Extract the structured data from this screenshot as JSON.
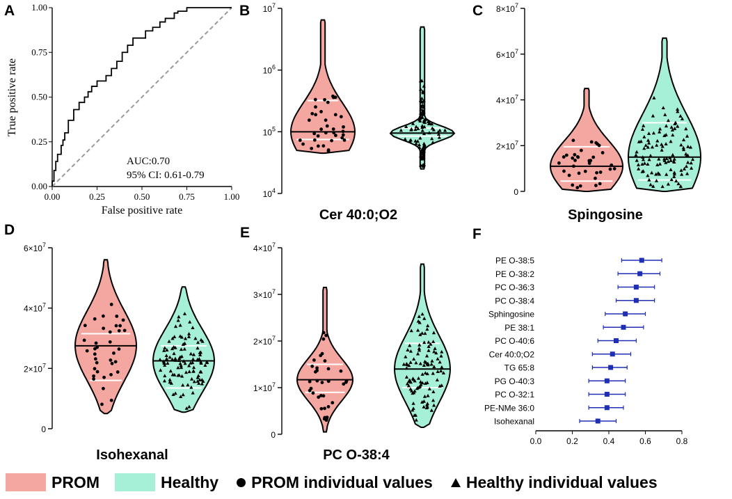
{
  "colors": {
    "prom": "#f4a6a0",
    "healthy": "#a5f0d6",
    "forest": "#1f2fb5"
  },
  "panels": {
    "A": {
      "label": "A"
    },
    "B": {
      "label": "B",
      "title": "Cer 40:0;O2"
    },
    "C": {
      "label": "C",
      "title": "Spingosine"
    },
    "D": {
      "label": "D",
      "title": "Isohexanal"
    },
    "E": {
      "label": "E",
      "title": "PC O-38:4"
    },
    "F": {
      "label": "F"
    }
  },
  "legend": {
    "prom": "PROM",
    "healthy": "Healthy",
    "prom_points": "PROM individual values",
    "healthy_points": "Healthy individual values"
  },
  "chart_data": [
    {
      "id": "A",
      "type": "line",
      "xlabel": "False positive rate",
      "ylabel": "True positive rate",
      "xlim": [
        0,
        1
      ],
      "ylim": [
        0,
        1
      ],
      "xticks": [
        "0.00",
        "0.25",
        "0.50",
        "0.75",
        "1.00"
      ],
      "yticks": [
        "0.00",
        "0.25",
        "0.50",
        "0.75",
        "1.00"
      ],
      "annotation": [
        "AUC:0.70",
        "95% CI: 0.61-0.79"
      ],
      "roc_x": [
        0,
        0,
        0.01,
        0.01,
        0.02,
        0.02,
        0.03,
        0.03,
        0.05,
        0.05,
        0.06,
        0.06,
        0.07,
        0.07,
        0.09,
        0.09,
        0.12,
        0.12,
        0.15,
        0.15,
        0.18,
        0.18,
        0.2,
        0.2,
        0.22,
        0.22,
        0.25,
        0.25,
        0.3,
        0.3,
        0.33,
        0.33,
        0.36,
        0.36,
        0.39,
        0.39,
        0.42,
        0.42,
        0.45,
        0.45,
        0.52,
        0.52,
        0.56,
        0.56,
        0.6,
        0.6,
        0.63,
        0.63,
        0.68,
        0.68,
        0.7,
        0.7,
        0.75,
        0.75,
        1
      ],
      "roc_y": [
        0,
        0.03,
        0.03,
        0.09,
        0.09,
        0.14,
        0.14,
        0.18,
        0.18,
        0.23,
        0.23,
        0.26,
        0.26,
        0.3,
        0.3,
        0.37,
        0.37,
        0.43,
        0.43,
        0.47,
        0.47,
        0.5,
        0.5,
        0.53,
        0.53,
        0.56,
        0.56,
        0.59,
        0.59,
        0.62,
        0.62,
        0.66,
        0.66,
        0.7,
        0.7,
        0.75,
        0.75,
        0.79,
        0.79,
        0.83,
        0.83,
        0.87,
        0.87,
        0.89,
        0.89,
        0.92,
        0.92,
        0.94,
        0.94,
        0.97,
        0.97,
        0.98,
        0.98,
        1,
        1
      ],
      "diagonal": [
        [
          0,
          0
        ],
        [
          1,
          1
        ]
      ]
    },
    {
      "id": "B",
      "type": "violin",
      "scale": "log",
      "ylim": [
        10000,
        10000000
      ],
      "yticks": [
        "10^4",
        "10^5",
        "10^6",
        "10^7"
      ],
      "groups": [
        {
          "name": "PROM",
          "median": 100000,
          "q1": 75000,
          "q3": 320000,
          "min": 45000,
          "max": 6500000
        },
        {
          "name": "Healthy",
          "median": 95000,
          "q1": 85000,
          "q3": 115000,
          "min": 25000,
          "max": 5000000
        }
      ]
    },
    {
      "id": "C",
      "type": "violin",
      "scale": "linear",
      "ylim": [
        0,
        80000000
      ],
      "yticks": [
        "0",
        "2×10^7",
        "4×10^7",
        "6×10^7",
        "8×10^7"
      ],
      "groups": [
        {
          "name": "PROM",
          "median": 11000000,
          "q1": 4500000,
          "q3": 19500000,
          "min": 0,
          "max": 45000000
        },
        {
          "name": "Healthy",
          "median": 15000000,
          "q1": 5000000,
          "q3": 30000000,
          "min": 0,
          "max": 67000000
        }
      ]
    },
    {
      "id": "D",
      "type": "violin",
      "scale": "linear",
      "ylim": [
        0,
        60000000
      ],
      "yticks": [
        "0",
        "2×10^7",
        "4×10^7",
        "6×10^7"
      ],
      "groups": [
        {
          "name": "PROM",
          "median": 27500000,
          "q1": 16000000,
          "q3": 31500000,
          "min": 5000000,
          "max": 56000000
        },
        {
          "name": "Healthy",
          "median": 22500000,
          "q1": 13500000,
          "q3": 27500000,
          "min": 5500000,
          "max": 47000000
        }
      ]
    },
    {
      "id": "E",
      "type": "violin",
      "scale": "linear",
      "ylim": [
        0,
        40000000
      ],
      "yticks": [
        "0",
        "1×10^7",
        "2×10^7",
        "3×10^7",
        "4×10^7"
      ],
      "groups": [
        {
          "name": "PROM",
          "median": 11700000,
          "q1": 9000000,
          "q3": 15000000,
          "min": 500000,
          "max": 31500000
        },
        {
          "name": "Healthy",
          "median": 14000000,
          "q1": 10000000,
          "q3": 19500000,
          "min": 1500000,
          "max": 36500000
        }
      ]
    },
    {
      "id": "F",
      "type": "forest",
      "xlim": [
        0,
        0.8
      ],
      "xticks": [
        "0.0",
        "0.2",
        "0.4",
        "0.6",
        "0.8"
      ],
      "rows": [
        {
          "label": "PE O-38:5",
          "est": 0.58,
          "lo": 0.47,
          "hi": 0.69
        },
        {
          "label": "PE O-38:2",
          "est": 0.57,
          "lo": 0.45,
          "hi": 0.68
        },
        {
          "label": "PC O-36:3",
          "est": 0.55,
          "lo": 0.45,
          "hi": 0.65
        },
        {
          "label": "PC O-38:4",
          "est": 0.55,
          "lo": 0.44,
          "hi": 0.65
        },
        {
          "label": "Sphingosine",
          "est": 0.49,
          "lo": 0.38,
          "hi": 0.6
        },
        {
          "label": "PE 38:1",
          "est": 0.48,
          "lo": 0.37,
          "hi": 0.59
        },
        {
          "label": "PC O-40:6",
          "est": 0.44,
          "lo": 0.34,
          "hi": 0.55
        },
        {
          "label": "Cer 40:0;O2",
          "est": 0.42,
          "lo": 0.31,
          "hi": 0.52
        },
        {
          "label": "TG 65:8",
          "est": 0.41,
          "lo": 0.31,
          "hi": 0.5
        },
        {
          "label": "PG O-40:3",
          "est": 0.39,
          "lo": 0.29,
          "hi": 0.49
        },
        {
          "label": "PC O-32:1",
          "est": 0.39,
          "lo": 0.29,
          "hi": 0.49
        },
        {
          "label": "PE-NMe 36:0",
          "est": 0.39,
          "lo": 0.29,
          "hi": 0.48
        },
        {
          "label": "Isohexanal",
          "est": 0.34,
          "lo": 0.24,
          "hi": 0.44
        }
      ]
    }
  ]
}
